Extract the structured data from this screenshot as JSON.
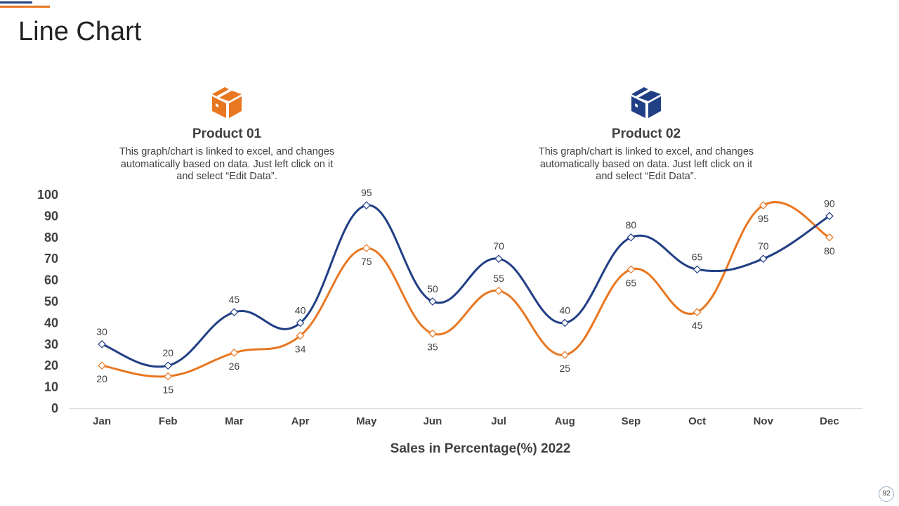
{
  "page": {
    "title": "Line Chart",
    "page_number": "92"
  },
  "colors": {
    "product_01": "#e87722",
    "product_02": "#213f85",
    "axis": "#d9d9d9",
    "text": "#404040"
  },
  "products": [
    {
      "name": "Product 01",
      "icon": "box-icon",
      "color": "#e87722",
      "description": "This graph/chart is linked to excel, and changes automatically based on data. Just left click on it and select “Edit Data”."
    },
    {
      "name": "Product 02",
      "icon": "box-icon",
      "color": "#213f85",
      "description": "This graph/chart is linked to excel, and changes automatically based on data. Just left click on it and select “Edit Data”."
    }
  ],
  "chart_data": {
    "type": "line",
    "title": "",
    "xlabel": "Sales in Percentage(%) 2022",
    "ylabel": "",
    "categories": [
      "Jan",
      "Feb",
      "Mar",
      "Apr",
      "May",
      "Jun",
      "Jul",
      "Aug",
      "Sep",
      "Oct",
      "Nov",
      "Dec"
    ],
    "ylim": [
      0,
      100
    ],
    "yticks": [
      0,
      10,
      20,
      30,
      40,
      50,
      60,
      70,
      80,
      90,
      100
    ],
    "grid": false,
    "legend": "none",
    "series": [
      {
        "name": "Product 01",
        "color": "#e87722",
        "values": [
          20,
          15,
          26,
          34,
          75,
          35,
          55,
          25,
          65,
          45,
          95,
          80
        ],
        "label_positions": [
          "below",
          "below",
          "below",
          "below",
          "below",
          "below",
          "above",
          "below",
          "below",
          "below",
          "below",
          "below"
        ]
      },
      {
        "name": "Product 02",
        "color": "#213f85",
        "values": [
          30,
          20,
          45,
          40,
          95,
          50,
          70,
          40,
          80,
          65,
          70,
          90
        ],
        "label_positions": [
          "above",
          "above",
          "above",
          "above",
          "above",
          "above",
          "above",
          "above",
          "above",
          "above",
          "above",
          "above"
        ]
      }
    ]
  }
}
